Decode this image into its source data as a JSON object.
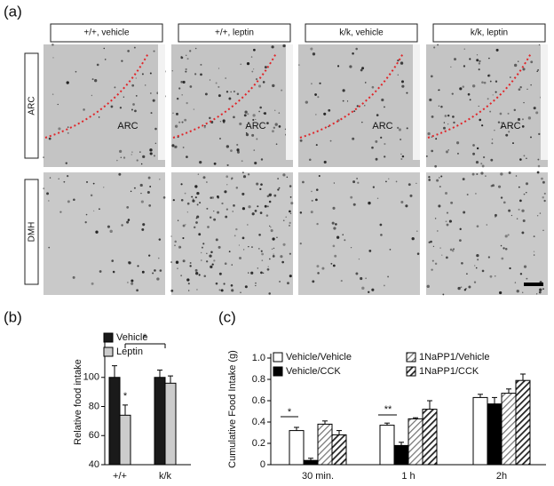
{
  "panel_a": {
    "label": "(a)",
    "columns": [
      "+/+, vehicle",
      "+/+, leptin",
      "k/k, vehicle",
      "k/k, leptin"
    ],
    "rows": [
      "ARC",
      "DMH"
    ],
    "region_label": "ARC"
  },
  "panel_b": {
    "label": "(b)"
  },
  "panel_c": {
    "label": "(c)"
  },
  "chart_data": [
    {
      "type": "bar",
      "y_label": "Relative food intake",
      "categories": [
        "+/+",
        "k/k"
      ],
      "series": [
        {
          "name": "Vehicle",
          "color": "#1a1a1a",
          "values": [
            100,
            100
          ],
          "errors": [
            8,
            5
          ]
        },
        {
          "name": "Leptin",
          "color": "#cccccc",
          "values": [
            74,
            96
          ],
          "errors": [
            7,
            5
          ]
        }
      ],
      "ylim": [
        40,
        120
      ],
      "yticks": [
        40,
        60,
        80,
        100
      ],
      "annotations": [
        "*",
        "*"
      ],
      "legend": "top-left"
    },
    {
      "type": "bar",
      "y_label": "Cumulative Food Intake (g)",
      "categories": [
        "30 min.",
        "1 h",
        "2h"
      ],
      "series": [
        {
          "name": "Vehicle/Vehicle",
          "color": "#ffffff",
          "values": [
            0.32,
            0.37,
            0.63
          ],
          "errors": [
            0.03,
            0.02,
            0.03
          ]
        },
        {
          "name": "Vehicle/CCK",
          "color": "#000000",
          "values": [
            0.04,
            0.18,
            0.57
          ],
          "errors": [
            0.02,
            0.03,
            0.06
          ]
        },
        {
          "name": "1NaPP1/Vehicle",
          "color": "#aaaaaa",
          "hatch": "light",
          "values": [
            0.38,
            0.43,
            0.67
          ],
          "errors": [
            0.03,
            0.01,
            0.04
          ]
        },
        {
          "name": "1NaPP1/CCK",
          "color": "#333333",
          "hatch": "dark",
          "values": [
            0.28,
            0.52,
            0.79
          ],
          "errors": [
            0.04,
            0.08,
            0.06
          ]
        }
      ],
      "ylim": [
        0,
        1
      ],
      "yticks": [
        0,
        0.2,
        0.4,
        0.6,
        0.8,
        {
          "value": 1,
          "label": "1.0"
        }
      ],
      "annotations": [
        "*",
        "**"
      ],
      "legend": "top"
    }
  ]
}
